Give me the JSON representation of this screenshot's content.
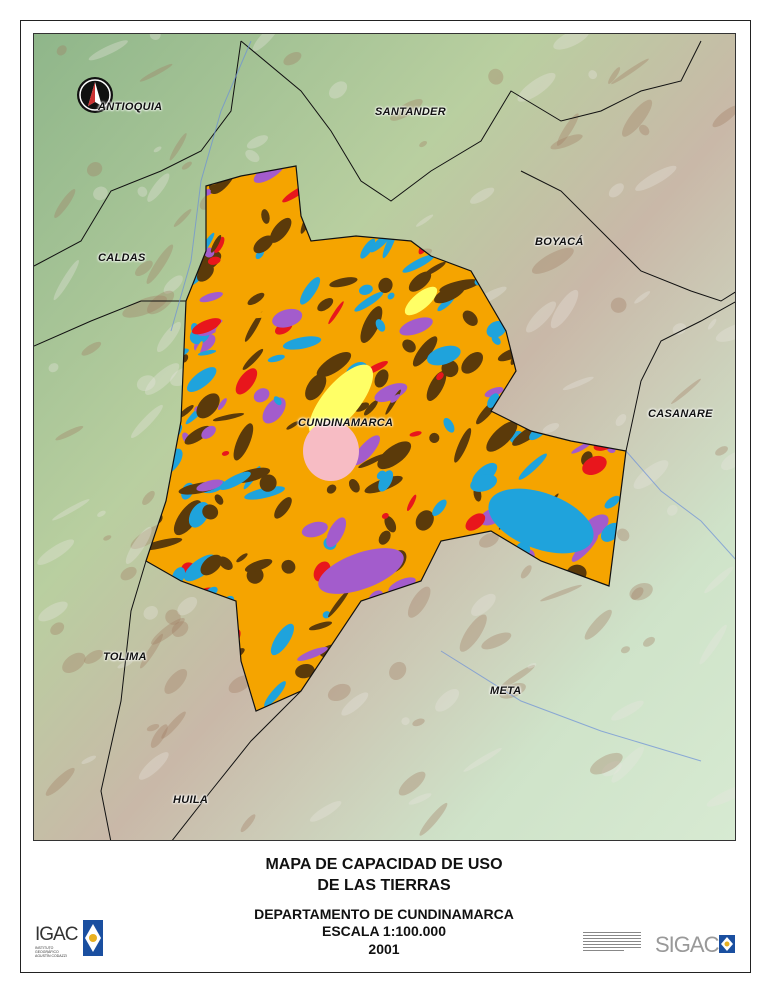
{
  "map": {
    "regions": [
      {
        "name": "ANTIOQUIA"
      },
      {
        "name": "SANTANDER"
      },
      {
        "name": "CALDAS"
      },
      {
        "name": "BOYACÁ"
      },
      {
        "name": "CUNDINAMARCA"
      },
      {
        "name": "CASANARE"
      },
      {
        "name": "TOLIMA"
      },
      {
        "name": "META"
      },
      {
        "name": "HUILA"
      }
    ],
    "land_capacity_colors": [
      "#f5a400",
      "#5b3a0a",
      "#1fa3dc",
      "#a35ccc",
      "#e8161c",
      "#ffff66",
      "#f7bcc4"
    ],
    "icons": {
      "north_arrow": "north-arrow-icon"
    }
  },
  "title": {
    "line1": "MAPA DE CAPACIDAD DE USO",
    "line2": "DE LAS TIERRAS",
    "line3": "DEPARTAMENTO DE CUNDINAMARCA",
    "line4": "ESCALA 1:100.000",
    "line5": "2001"
  },
  "logos": {
    "igac": "IGAC",
    "igac_sub": "INSTITUTO GEOGRÁFICO AGUSTÍN CODAZZI",
    "sigac": "SIGAC"
  }
}
